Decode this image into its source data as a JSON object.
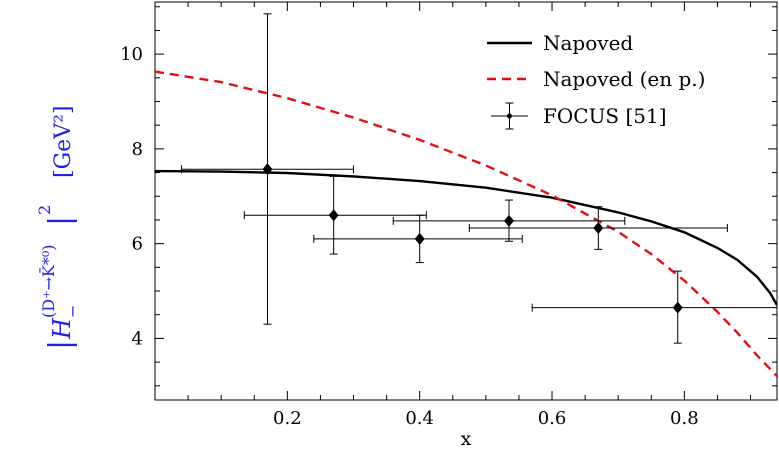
{
  "chart_data": {
    "type": "line",
    "title": "",
    "xlabel": "x",
    "ylabel": {
      "abs_left": "|",
      "symbol": "H",
      "subscript": "−",
      "superscript": "(D⁺→K̄*⁰)",
      "abs_right": "|",
      "power": "2",
      "unit": "[GeV²]"
    },
    "xlim": [
      0.0,
      0.94
    ],
    "ylim": [
      2.7,
      11.1
    ],
    "x_ticks": [
      0.2,
      0.4,
      0.6,
      0.8
    ],
    "x_tick_labels": [
      "0.2",
      "0.4",
      "0.6",
      "0.8"
    ],
    "y_ticks": [
      4,
      6,
      8,
      10
    ],
    "y_tick_labels": [
      "4",
      "6",
      "8",
      "10"
    ],
    "grid": false,
    "legend_position": "top-right",
    "series": [
      {
        "name": "Napoved",
        "style": "solid",
        "color": "#000000",
        "x": [
          0.0,
          0.1,
          0.2,
          0.3,
          0.4,
          0.5,
          0.6,
          0.7,
          0.75,
          0.8,
          0.85,
          0.88,
          0.91,
          0.93,
          0.94
        ],
        "y": [
          7.53,
          7.52,
          7.49,
          7.42,
          7.32,
          7.18,
          6.97,
          6.66,
          6.47,
          6.24,
          5.91,
          5.66,
          5.3,
          4.95,
          4.7
        ]
      },
      {
        "name": "Napoved (en p.)",
        "style": "dashed",
        "color": "#e01010",
        "x": [
          0.0,
          0.1,
          0.2,
          0.3,
          0.4,
          0.5,
          0.6,
          0.7,
          0.75,
          0.8,
          0.85,
          0.88,
          0.91,
          0.93,
          0.94
        ],
        "y": [
          9.63,
          9.41,
          9.07,
          8.66,
          8.19,
          7.65,
          7.02,
          6.25,
          5.78,
          5.22,
          4.56,
          4.12,
          3.64,
          3.35,
          3.2
        ]
      },
      {
        "name": "FOCUS [51]",
        "style": "points-with-errorbars",
        "color": "#000000",
        "points": [
          {
            "x": 0.17,
            "y": 7.57,
            "xerr": [
              0.04,
              0.3
            ],
            "yerr": [
              4.3,
              10.85
            ]
          },
          {
            "x": 0.27,
            "y": 6.6,
            "xerr": [
              0.135,
              0.41
            ],
            "yerr": [
              5.78,
              7.42
            ]
          },
          {
            "x": 0.4,
            "y": 6.1,
            "xerr": [
              0.24,
              0.555
            ],
            "yerr": [
              5.6,
              6.6
            ]
          },
          {
            "x": 0.535,
            "y": 6.48,
            "xerr": [
              0.36,
              0.71
            ],
            "yerr": [
              6.05,
              6.92
            ]
          },
          {
            "x": 0.67,
            "y": 6.33,
            "xerr": [
              0.475,
              0.865
            ],
            "yerr": [
              5.88,
              6.78
            ]
          },
          {
            "x": 0.79,
            "y": 4.65,
            "xerr": [
              0.57,
              0.94
            ],
            "yerr": [
              3.9,
              5.42
            ]
          }
        ]
      }
    ]
  }
}
